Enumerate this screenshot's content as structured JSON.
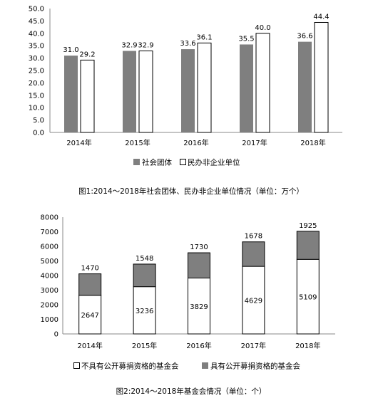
{
  "chart_data": [
    {
      "type": "bar",
      "caption": "图1:2014～2018年社会团体、民办非企业单位情况（单位：万个）",
      "categories": [
        "2014年",
        "2015年",
        "2016年",
        "2017年",
        "2018年"
      ],
      "series": [
        {
          "name": "社会团体",
          "values": [
            31.0,
            32.9,
            33.6,
            35.5,
            36.6
          ],
          "labels": [
            "31.0",
            "32.9",
            "33.6",
            "35.5",
            "36.6"
          ],
          "color": "#7f7f7f"
        },
        {
          "name": "民办非企业单位",
          "values": [
            29.2,
            32.9,
            36.1,
            40.0,
            44.4
          ],
          "labels": [
            "29.2",
            "32.9",
            "36.1",
            "40.0",
            "44.4"
          ],
          "color": "#ffffff"
        }
      ],
      "ylim": [
        0,
        50
      ],
      "yticks": [
        "0.0",
        "5.0",
        "10.0",
        "15.0",
        "20.0",
        "25.0",
        "30.0",
        "35.0",
        "40.0",
        "45.0",
        "50.0"
      ],
      "legend_position": "bottom",
      "grid": false
    },
    {
      "type": "bar",
      "stacked": true,
      "caption": "图2:2014～2018年基金会情况（单位：个）",
      "categories": [
        "2014年",
        "2015年",
        "2016年",
        "2017年",
        "2018年"
      ],
      "series": [
        {
          "name": "不具有公开募捐资格的基金会",
          "values": [
            2647,
            3236,
            3829,
            4629,
            5109
          ],
          "labels": [
            "2647",
            "3236",
            "3829",
            "4629",
            "5109"
          ],
          "color": "#ffffff"
        },
        {
          "name": "具有公开募捐资格的基金会",
          "values": [
            1470,
            1548,
            1730,
            1678,
            1925
          ],
          "labels": [
            "1470",
            "1548",
            "1730",
            "1678",
            "1925"
          ],
          "color": "#7f7f7f"
        }
      ],
      "ylim": [
        0,
        8000
      ],
      "yticks": [
        "0",
        "1000",
        "2000",
        "3000",
        "4000",
        "5000",
        "6000",
        "7000",
        "8000"
      ],
      "legend_position": "bottom",
      "grid": false
    }
  ]
}
